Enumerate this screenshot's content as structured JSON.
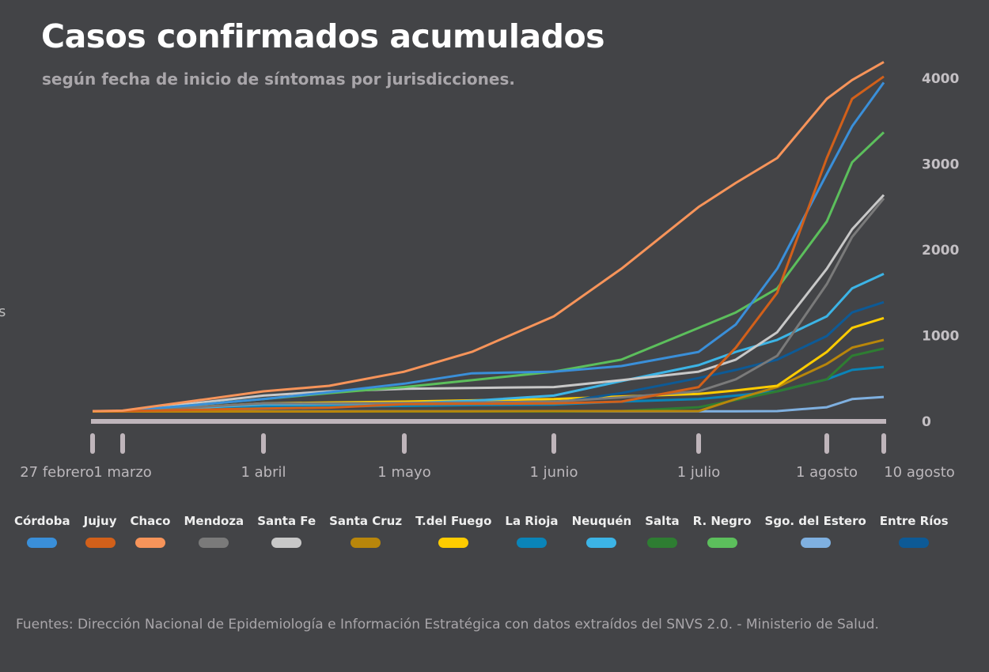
{
  "chart_data": {
    "type": "line",
    "title": "Casos confirmados acumulados",
    "subtitle": "según fecha de inicio de síntomas por jurisdicciones.",
    "ylabel_fragment": "s",
    "ylim": [
      0,
      4300
    ],
    "yticks": [
      0,
      1000,
      2000,
      3000,
      4000
    ],
    "y_axis_position": "right",
    "grid": false,
    "legend_placement": "bottom",
    "xticks": [
      {
        "date": "2020-02-27",
        "label": "27 febrero"
      },
      {
        "date": "2020-03-01",
        "label": "1 marzo"
      },
      {
        "date": "2020-04-01",
        "label": "1 abril"
      },
      {
        "date": "2020-05-01",
        "label": "1 mayo"
      },
      {
        "date": "2020-06-01",
        "label": "1 junio"
      },
      {
        "date": "2020-07-01",
        "label": "1 julio"
      },
      {
        "date": "2020-08-01",
        "label": "1 agosto"
      },
      {
        "date": "2020-08-10",
        "label": "10 agosto"
      }
    ],
    "x": [
      "2020-02-27",
      "2020-03-01",
      "2020-04-01",
      "2020-04-15",
      "2020-05-01",
      "2020-05-15",
      "2020-06-01",
      "2020-06-15",
      "2020-07-01",
      "2020-07-10",
      "2020-07-20",
      "2020-08-01",
      "2020-08-05",
      "2020-08-10"
    ],
    "series": [
      {
        "name": "Córdoba",
        "color": "#3a8fd9",
        "values": [
          120,
          120,
          260,
          340,
          440,
          560,
          580,
          645,
          810,
          1130,
          1780,
          2885,
          3440,
          3950
        ]
      },
      {
        "name": "Jujuy",
        "color": "#d2601a",
        "values": [
          120,
          120,
          150,
          160,
          200,
          205,
          210,
          230,
          400,
          860,
          1500,
          3070,
          3760,
          4020
        ]
      },
      {
        "name": "Chaco",
        "color": "#f7945a",
        "values": [
          120,
          125,
          350,
          415,
          580,
          810,
          1225,
          1780,
          2500,
          2780,
          3070,
          3760,
          3980,
          4190
        ]
      },
      {
        "name": "Mendoza",
        "color": "#7a7a7a",
        "values": [
          120,
          120,
          210,
          210,
          215,
          220,
          230,
          280,
          350,
          490,
          765,
          1600,
          2150,
          2600
        ]
      },
      {
        "name": "Santa Fe",
        "color": "#c8c8c8",
        "values": [
          120,
          120,
          300,
          350,
          380,
          390,
          400,
          480,
          580,
          720,
          1040,
          1780,
          2240,
          2640
        ]
      },
      {
        "name": "Santa Cruz",
        "color": "#b8860b",
        "values": [
          115,
          115,
          115,
          115,
          118,
          118,
          120,
          120,
          120,
          260,
          400,
          670,
          860,
          950
        ]
      },
      {
        "name": "T.del Fuego",
        "color": "#ffcc00",
        "values": [
          120,
          120,
          210,
          220,
          230,
          245,
          260,
          290,
          320,
          360,
          415,
          810,
          1090,
          1205
        ]
      },
      {
        "name": "La Rioja",
        "color": "#0a84b8",
        "values": [
          120,
          120,
          170,
          175,
          180,
          190,
          195,
          230,
          260,
          300,
          350,
          490,
          600,
          635
        ]
      },
      {
        "name": "Neuquén",
        "color": "#3cb4e6",
        "values": [
          120,
          120,
          195,
          200,
          210,
          240,
          300,
          470,
          655,
          810,
          950,
          1225,
          1550,
          1720
        ]
      },
      {
        "name": "Salta",
        "color": "#2e7d32",
        "values": [
          115,
          115,
          115,
          115,
          115,
          115,
          115,
          120,
          165,
          250,
          350,
          490,
          765,
          850
        ]
      },
      {
        "name": "R. Negro",
        "color": "#5cbf5c",
        "values": [
          120,
          120,
          260,
          330,
          400,
          480,
          580,
          720,
          1090,
          1270,
          1550,
          2330,
          3020,
          3370
        ]
      },
      {
        "name": "Sgo. del Estero",
        "color": "#7fb0e0",
        "values": [
          118,
          118,
          118,
          118,
          118,
          118,
          118,
          118,
          118,
          118,
          120,
          165,
          260,
          285
        ]
      },
      {
        "name": "Entre Ríos",
        "color": "#0d5a96",
        "values": [
          120,
          120,
          190,
          200,
          210,
          210,
          215,
          330,
          505,
          600,
          720,
          995,
          1270,
          1390
        ]
      }
    ]
  },
  "source": "Fuentes: Dirección Nacional de Epidemiología e Información Estratégica con datos extraídos del SNVS 2.0. - Ministerio de Salud.",
  "colors": {
    "background": "#434447",
    "baseline": "#bfb5bb"
  }
}
